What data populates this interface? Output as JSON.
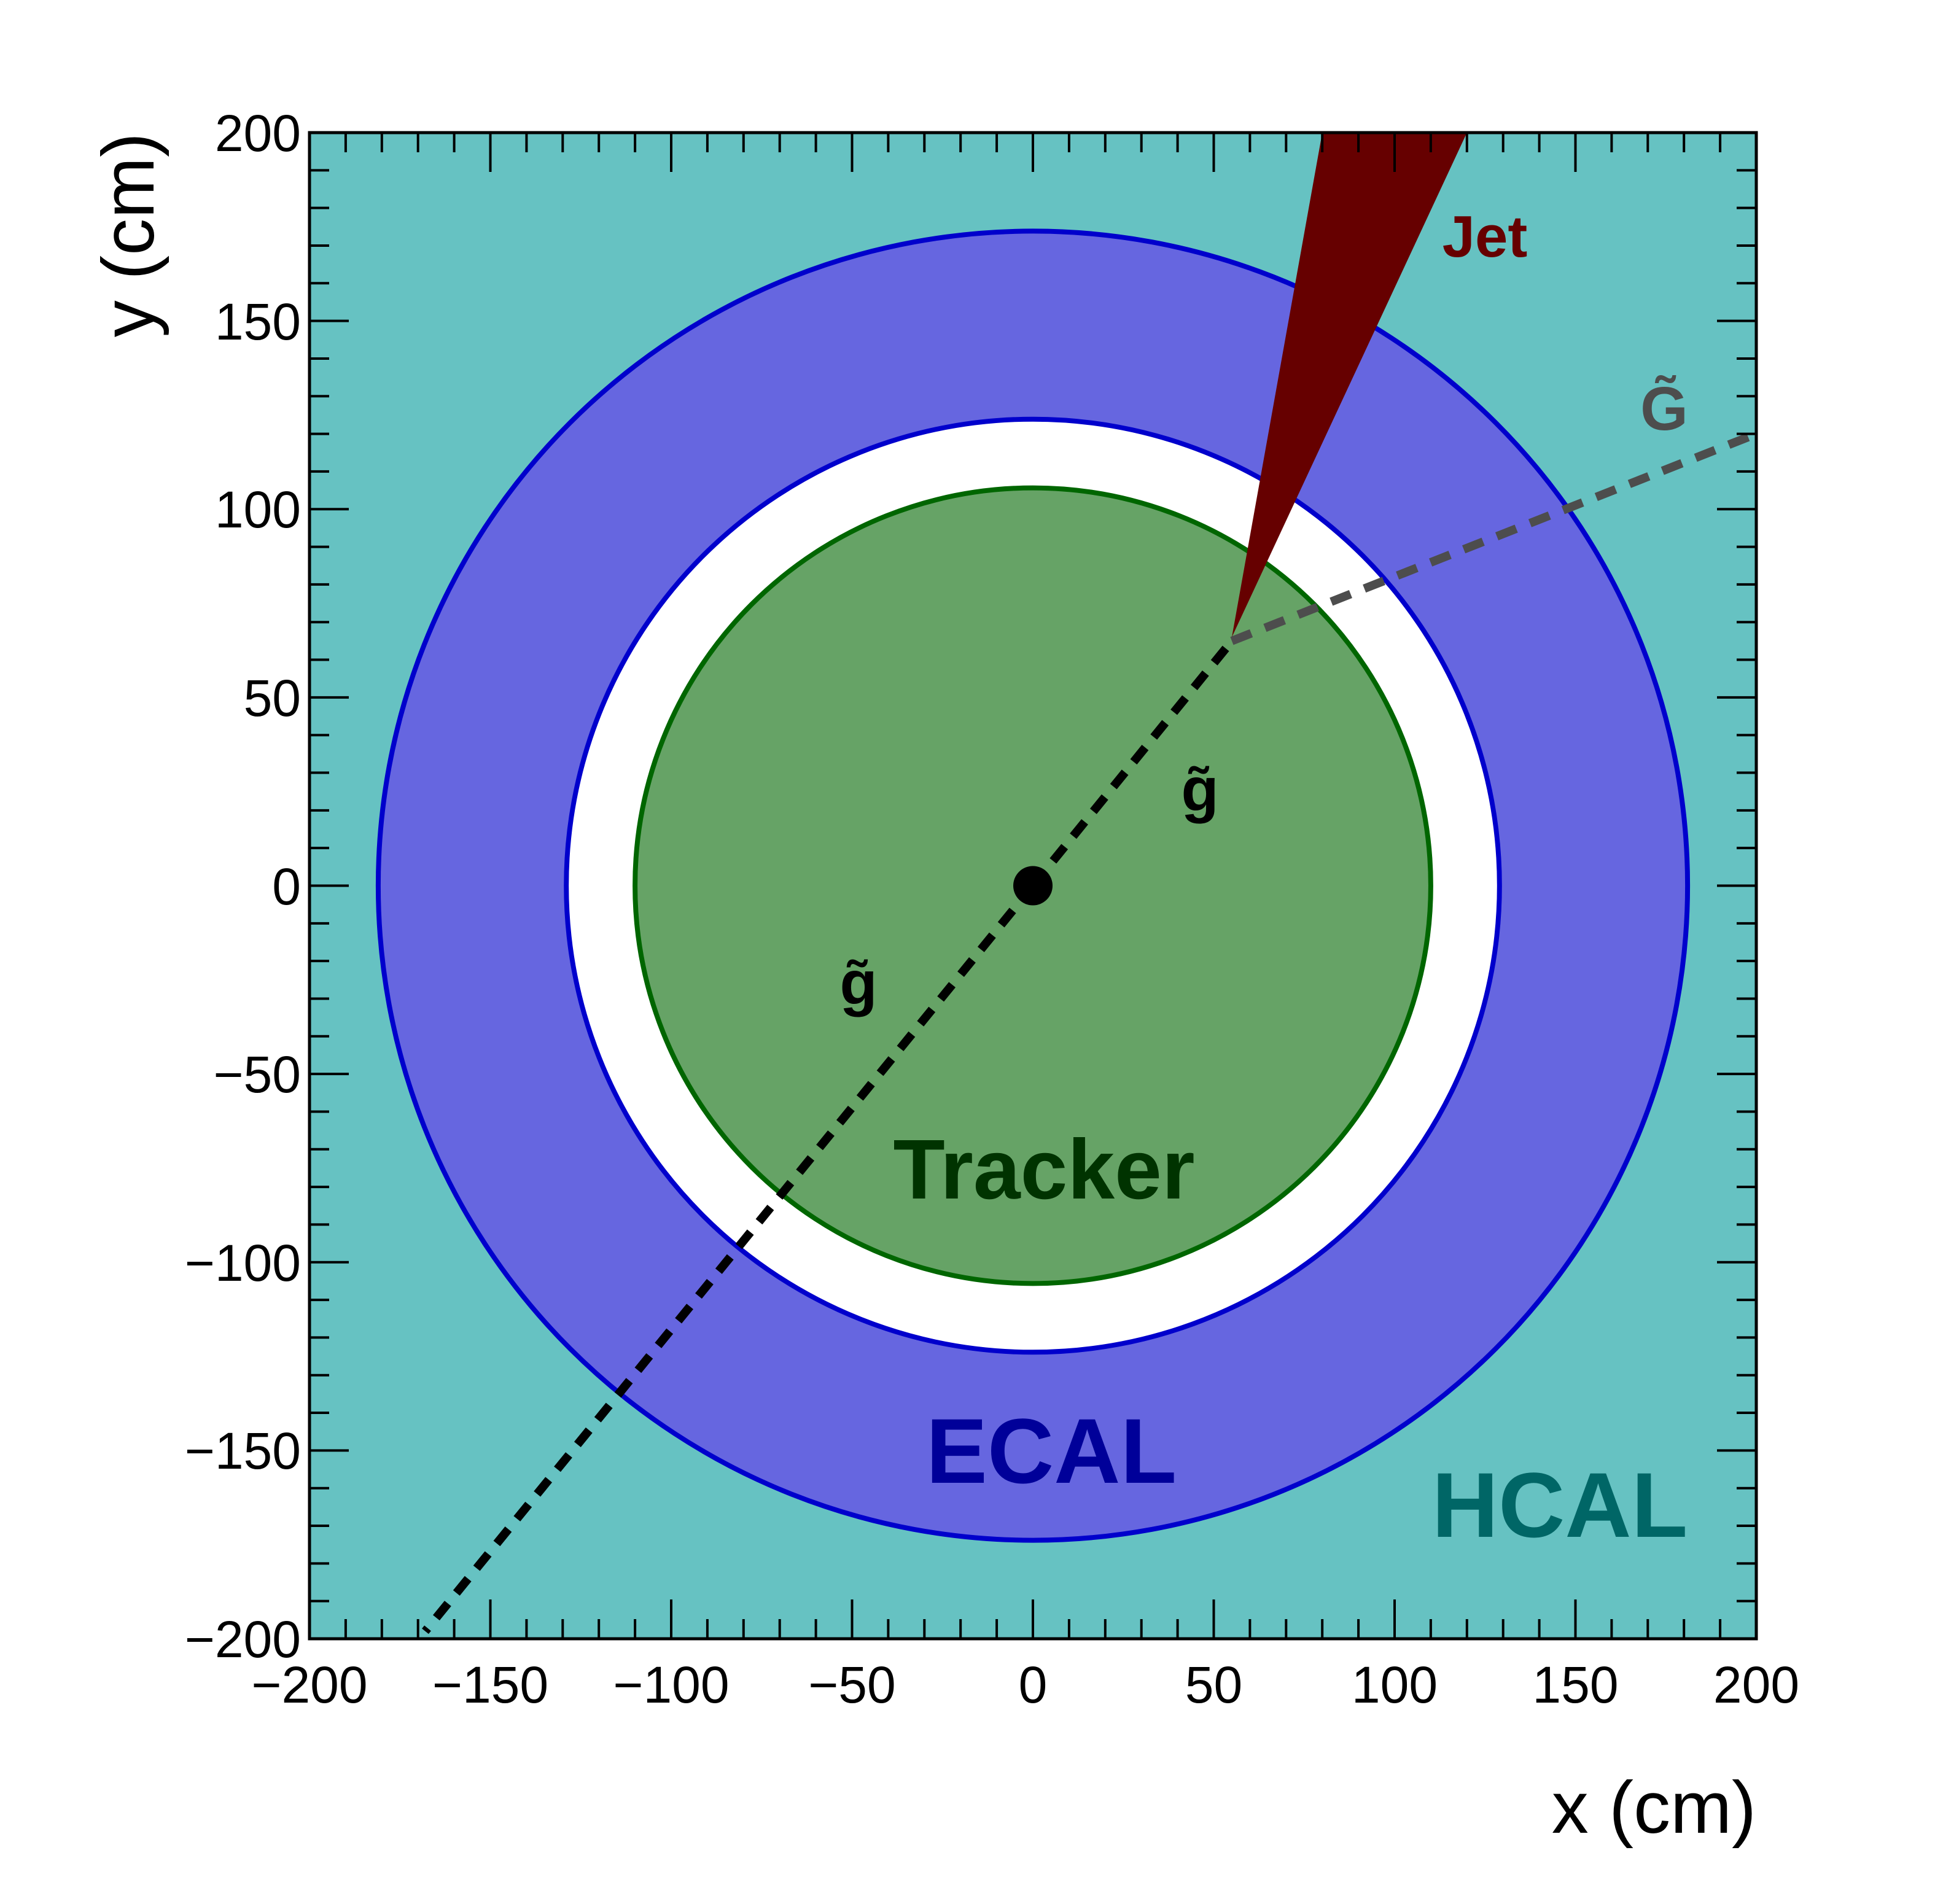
{
  "axes": {
    "xlabel": "x (cm)",
    "ylabel": "y (cm)",
    "xlim": [
      -200,
      200
    ],
    "ylim": [
      -200,
      200
    ],
    "major_ticks": [
      -200,
      -150,
      -100,
      -50,
      0,
      50,
      100,
      150,
      200
    ],
    "tick_labels": [
      "−200",
      "−150",
      "−100",
      "−50",
      "0",
      "50",
      "100",
      "150",
      "200"
    ],
    "minor_tick_step": 10
  },
  "regions": {
    "hcal": {
      "label": "HCAL",
      "fill": "#66c2c2",
      "label_color": "#006666"
    },
    "ecal": {
      "label": "ECAL",
      "outer_radius": 181,
      "inner_radius": 129,
      "fill": "#6666e0",
      "stroke": "#0000cc",
      "label_color": "#000099"
    },
    "tracker": {
      "label": "Tracker",
      "radius": 110,
      "fill": "#66a366",
      "stroke": "#006600",
      "label_color": "#003300"
    }
  },
  "interaction_point": {
    "x": 0,
    "y": 0
  },
  "particles": {
    "gluino_1": {
      "label": "g̃",
      "from": [
        0,
        0
      ],
      "to": [
        55,
        65
      ],
      "color": "#000000"
    },
    "gluino_2": {
      "label": "g̃",
      "from": [
        0,
        0
      ],
      "to": [
        -168,
        -198
      ],
      "color": "#000000"
    },
    "gravitino": {
      "label": "G̃",
      "from": [
        55,
        65
      ],
      "to": [
        200,
        120
      ],
      "color": "#4d4d4d"
    }
  },
  "jet": {
    "label": "Jet",
    "apex": [
      55,
      66
    ],
    "edge1": [
      80,
      200
    ],
    "edge2": [
      120,
      200
    ],
    "color": "#660000"
  }
}
